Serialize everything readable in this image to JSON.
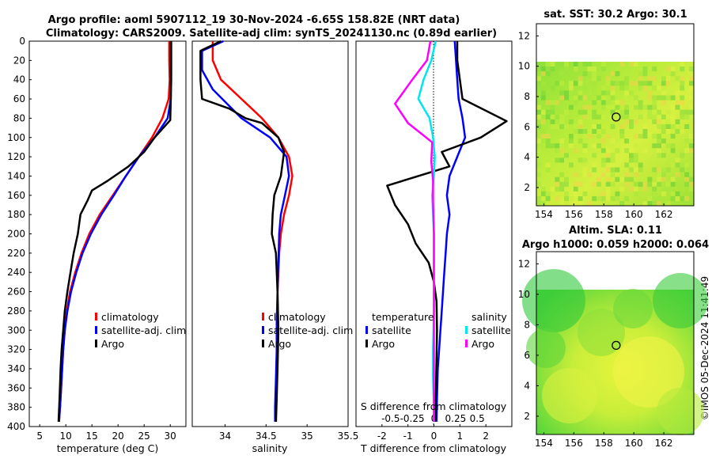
{
  "title_line1": "Argo profile: aoml 5907112_19 30-Nov-2024 -6.65S 158.82E (NRT data)",
  "title_line2": "Climatology: CARS2009. Satellite-adj clim: synTS_20241130.nc (0.89d earlier)",
  "watermark": "©IMOS 05-Dec-2024 11:41:49",
  "colors": {
    "climatology": "#ff0000",
    "satellite": "#0000ff",
    "argo": "#000000",
    "s_satellite": "#00e5ee",
    "s_argo": "#ff00ff"
  },
  "chart_data": [
    {
      "type": "line",
      "name": "temperature-profile",
      "xlabel": "temperature (deg C)",
      "ylabel": "",
      "xlim": [
        3,
        33
      ],
      "ylim": [
        400,
        0
      ],
      "xticks": [
        5,
        10,
        15,
        20,
        25,
        30
      ],
      "yticks": [
        0,
        20,
        40,
        60,
        80,
        100,
        120,
        140,
        160,
        180,
        200,
        220,
        240,
        260,
        280,
        300,
        320,
        340,
        360,
        380,
        400
      ],
      "legend": [
        "climatology",
        "satellite-adj. clim",
        "Argo"
      ],
      "series": [
        {
          "name": "climatology",
          "x": [
            29.8,
            29.8,
            29.9,
            29.7,
            28.5,
            26.5,
            24,
            21.5,
            19,
            16.5,
            14.5,
            13,
            11.8,
            10.8,
            10.2,
            9.8,
            9.5,
            9.3,
            9.1,
            8.9,
            8.7
          ],
          "y": [
            0,
            20,
            40,
            60,
            80,
            100,
            120,
            140,
            160,
            180,
            200,
            220,
            240,
            260,
            280,
            300,
            320,
            340,
            360,
            380,
            395
          ]
        },
        {
          "name": "satellite-adj. clim",
          "x": [
            30.2,
            30.2,
            30.2,
            30.1,
            29.5,
            27,
            24,
            21.5,
            19.2,
            16.8,
            14.8,
            13.2,
            12,
            11,
            10.3,
            9.8,
            9.5,
            9.3,
            9.1,
            8.9,
            8.7
          ],
          "y": [
            0,
            20,
            40,
            60,
            80,
            100,
            120,
            140,
            160,
            180,
            200,
            220,
            240,
            260,
            280,
            300,
            320,
            340,
            360,
            380,
            395
          ]
        },
        {
          "name": "Argo",
          "x": [
            30.1,
            30.1,
            30.1,
            30.1,
            30,
            27,
            25,
            22,
            18,
            15,
            14.2,
            12.8,
            12.3,
            11.5,
            10.9,
            10.3,
            9.8,
            9.5,
            9.2,
            9,
            8.8,
            8.6
          ],
          "y": [
            0,
            20,
            40,
            60,
            82,
            100,
            115,
            130,
            145,
            155,
            165,
            180,
            200,
            220,
            240,
            260,
            280,
            300,
            320,
            340,
            370,
            395
          ]
        }
      ]
    },
    {
      "type": "line",
      "name": "salinity-profile",
      "xlabel": "salinity",
      "xlim": [
        33.6,
        35.5
      ],
      "ylim": [
        400,
        0
      ],
      "xticks": [
        34,
        34.5,
        35,
        35.5
      ],
      "xticklabels": [
        "34",
        "34.5",
        "35",
        "35.5"
      ],
      "legend": [
        "climatology",
        "satellite-adj. clim",
        "Argo"
      ],
      "series": [
        {
          "name": "climatology",
          "x": [
            33.85,
            33.85,
            33.95,
            34.2,
            34.45,
            34.65,
            34.78,
            34.82,
            34.78,
            34.72,
            34.68,
            34.66,
            34.65,
            34.64,
            34.64,
            34.63,
            34.63,
            34.62,
            34.62
          ],
          "y": [
            0,
            20,
            40,
            60,
            80,
            100,
            120,
            140,
            160,
            180,
            200,
            220,
            240,
            260,
            280,
            300,
            330,
            360,
            395
          ]
        },
        {
          "name": "satellite-adj. clim",
          "x": [
            33.98,
            33.72,
            33.72,
            33.85,
            34.2,
            34.55,
            34.75,
            34.78,
            34.73,
            34.68,
            34.66,
            34.65,
            34.64,
            34.63,
            34.63,
            34.62,
            34.61,
            34.61
          ],
          "y": [
            0,
            10,
            30,
            50,
            80,
            100,
            120,
            140,
            160,
            180,
            200,
            230,
            260,
            290,
            320,
            350,
            380,
            395
          ]
        },
        {
          "name": "Argo",
          "x": [
            33.95,
            33.7,
            33.7,
            33.72,
            34.05,
            34.25,
            34.45,
            34.65,
            34.72,
            34.68,
            34.6,
            34.58,
            34.57,
            34.62,
            34.63,
            34.64,
            34.65,
            34.64,
            34.63,
            34.62
          ],
          "y": [
            0,
            10,
            40,
            60,
            70,
            80,
            85,
            100,
            115,
            140,
            160,
            180,
            200,
            220,
            240,
            260,
            300,
            340,
            370,
            395
          ]
        }
      ]
    },
    {
      "type": "line",
      "name": "difference-profile",
      "xlabel": "T difference from climatology",
      "xlabel2": "S difference from climatology",
      "xlim": [
        -3,
        3
      ],
      "ylim": [
        400,
        0
      ],
      "xticks": [
        -2,
        -1,
        0,
        1,
        2
      ],
      "xticks2": [
        -0.5,
        -0.25,
        0,
        0.25,
        0.5
      ],
      "xticklabels2": [
        "-0.5",
        "-0.25",
        "0",
        "0.25",
        "0.5"
      ],
      "legend_temperature_title": "temperature",
      "legend_salinity_title": "salinity",
      "legend_temperature": [
        "satellite",
        "Argo"
      ],
      "legend_salinity": [
        "satellite",
        "Argo"
      ],
      "series": [
        {
          "name": "T satellite",
          "x": [
            0.8,
            0.85,
            0.9,
            0.95,
            1.1,
            1.2,
            0.9,
            0.6,
            0.5,
            0.6,
            0.5,
            0.45,
            0.4,
            0.35,
            0.3,
            0.25,
            0.2,
            0.15,
            0.12,
            0.1
          ],
          "y": [
            0,
            20,
            40,
            60,
            80,
            100,
            120,
            140,
            160,
            180,
            200,
            220,
            240,
            260,
            280,
            300,
            320,
            340,
            370,
            395
          ]
        },
        {
          "name": "T Argo",
          "x": [
            0.9,
            0.9,
            1.0,
            1.1,
            2.8,
            1.8,
            0.3,
            0.6,
            -1.8,
            -1.5,
            -1.0,
            -0.7,
            -0.2,
            0.0,
            0.1,
            0.12,
            0.1,
            0.08,
            0.05
          ],
          "y": [
            0,
            20,
            40,
            60,
            83,
            100,
            115,
            130,
            150,
            170,
            190,
            210,
            230,
            250,
            270,
            300,
            330,
            360,
            395
          ]
        },
        {
          "name": "S satellite",
          "x": [
            0.02,
            -0.03,
            -0.12,
            -0.18,
            -0.05,
            -0.01,
            0.01,
            0.0,
            -0.02,
            -0.01,
            0.0,
            0.0,
            0.0,
            -0.01,
            -0.01,
            0.0,
            0.0
          ],
          "y": [
            0,
            20,
            40,
            60,
            80,
            100,
            120,
            140,
            160,
            180,
            200,
            240,
            280,
            320,
            350,
            380,
            395
          ]
        },
        {
          "name": "S Argo",
          "x": [
            -0.04,
            -0.08,
            -0.25,
            -0.45,
            -0.3,
            -0.02,
            -0.03,
            -0.01,
            -0.01,
            0.0,
            0.0,
            0.0,
            0.0,
            0.0,
            0.0
          ],
          "y": [
            0,
            20,
            40,
            65,
            85,
            105,
            125,
            145,
            165,
            200,
            240,
            280,
            320,
            360,
            395
          ]
        }
      ]
    },
    {
      "type": "heatmap",
      "name": "sst-map",
      "title": "sat. SST: 30.2 Argo: 30.1",
      "xlim": [
        153.5,
        164
      ],
      "ylim": [
        0.8,
        12.8
      ],
      "xticks": [
        154,
        156,
        158,
        160,
        162
      ],
      "yticks": [
        2,
        4,
        6,
        8,
        10,
        12
      ],
      "marker": {
        "lon": 158.82,
        "lat": 6.65
      }
    },
    {
      "type": "heatmap",
      "name": "sla-map",
      "title": "Altim. SLA: 0.11",
      "subtitle": "Argo h1000: 0.059 h2000: 0.064",
      "xlim": [
        153.5,
        164
      ],
      "ylim": [
        0.8,
        12.8
      ],
      "xticks": [
        154,
        156,
        158,
        160,
        162
      ],
      "yticks": [
        2,
        4,
        6,
        8,
        10,
        12
      ],
      "marker": {
        "lon": 158.82,
        "lat": 6.65
      }
    }
  ]
}
